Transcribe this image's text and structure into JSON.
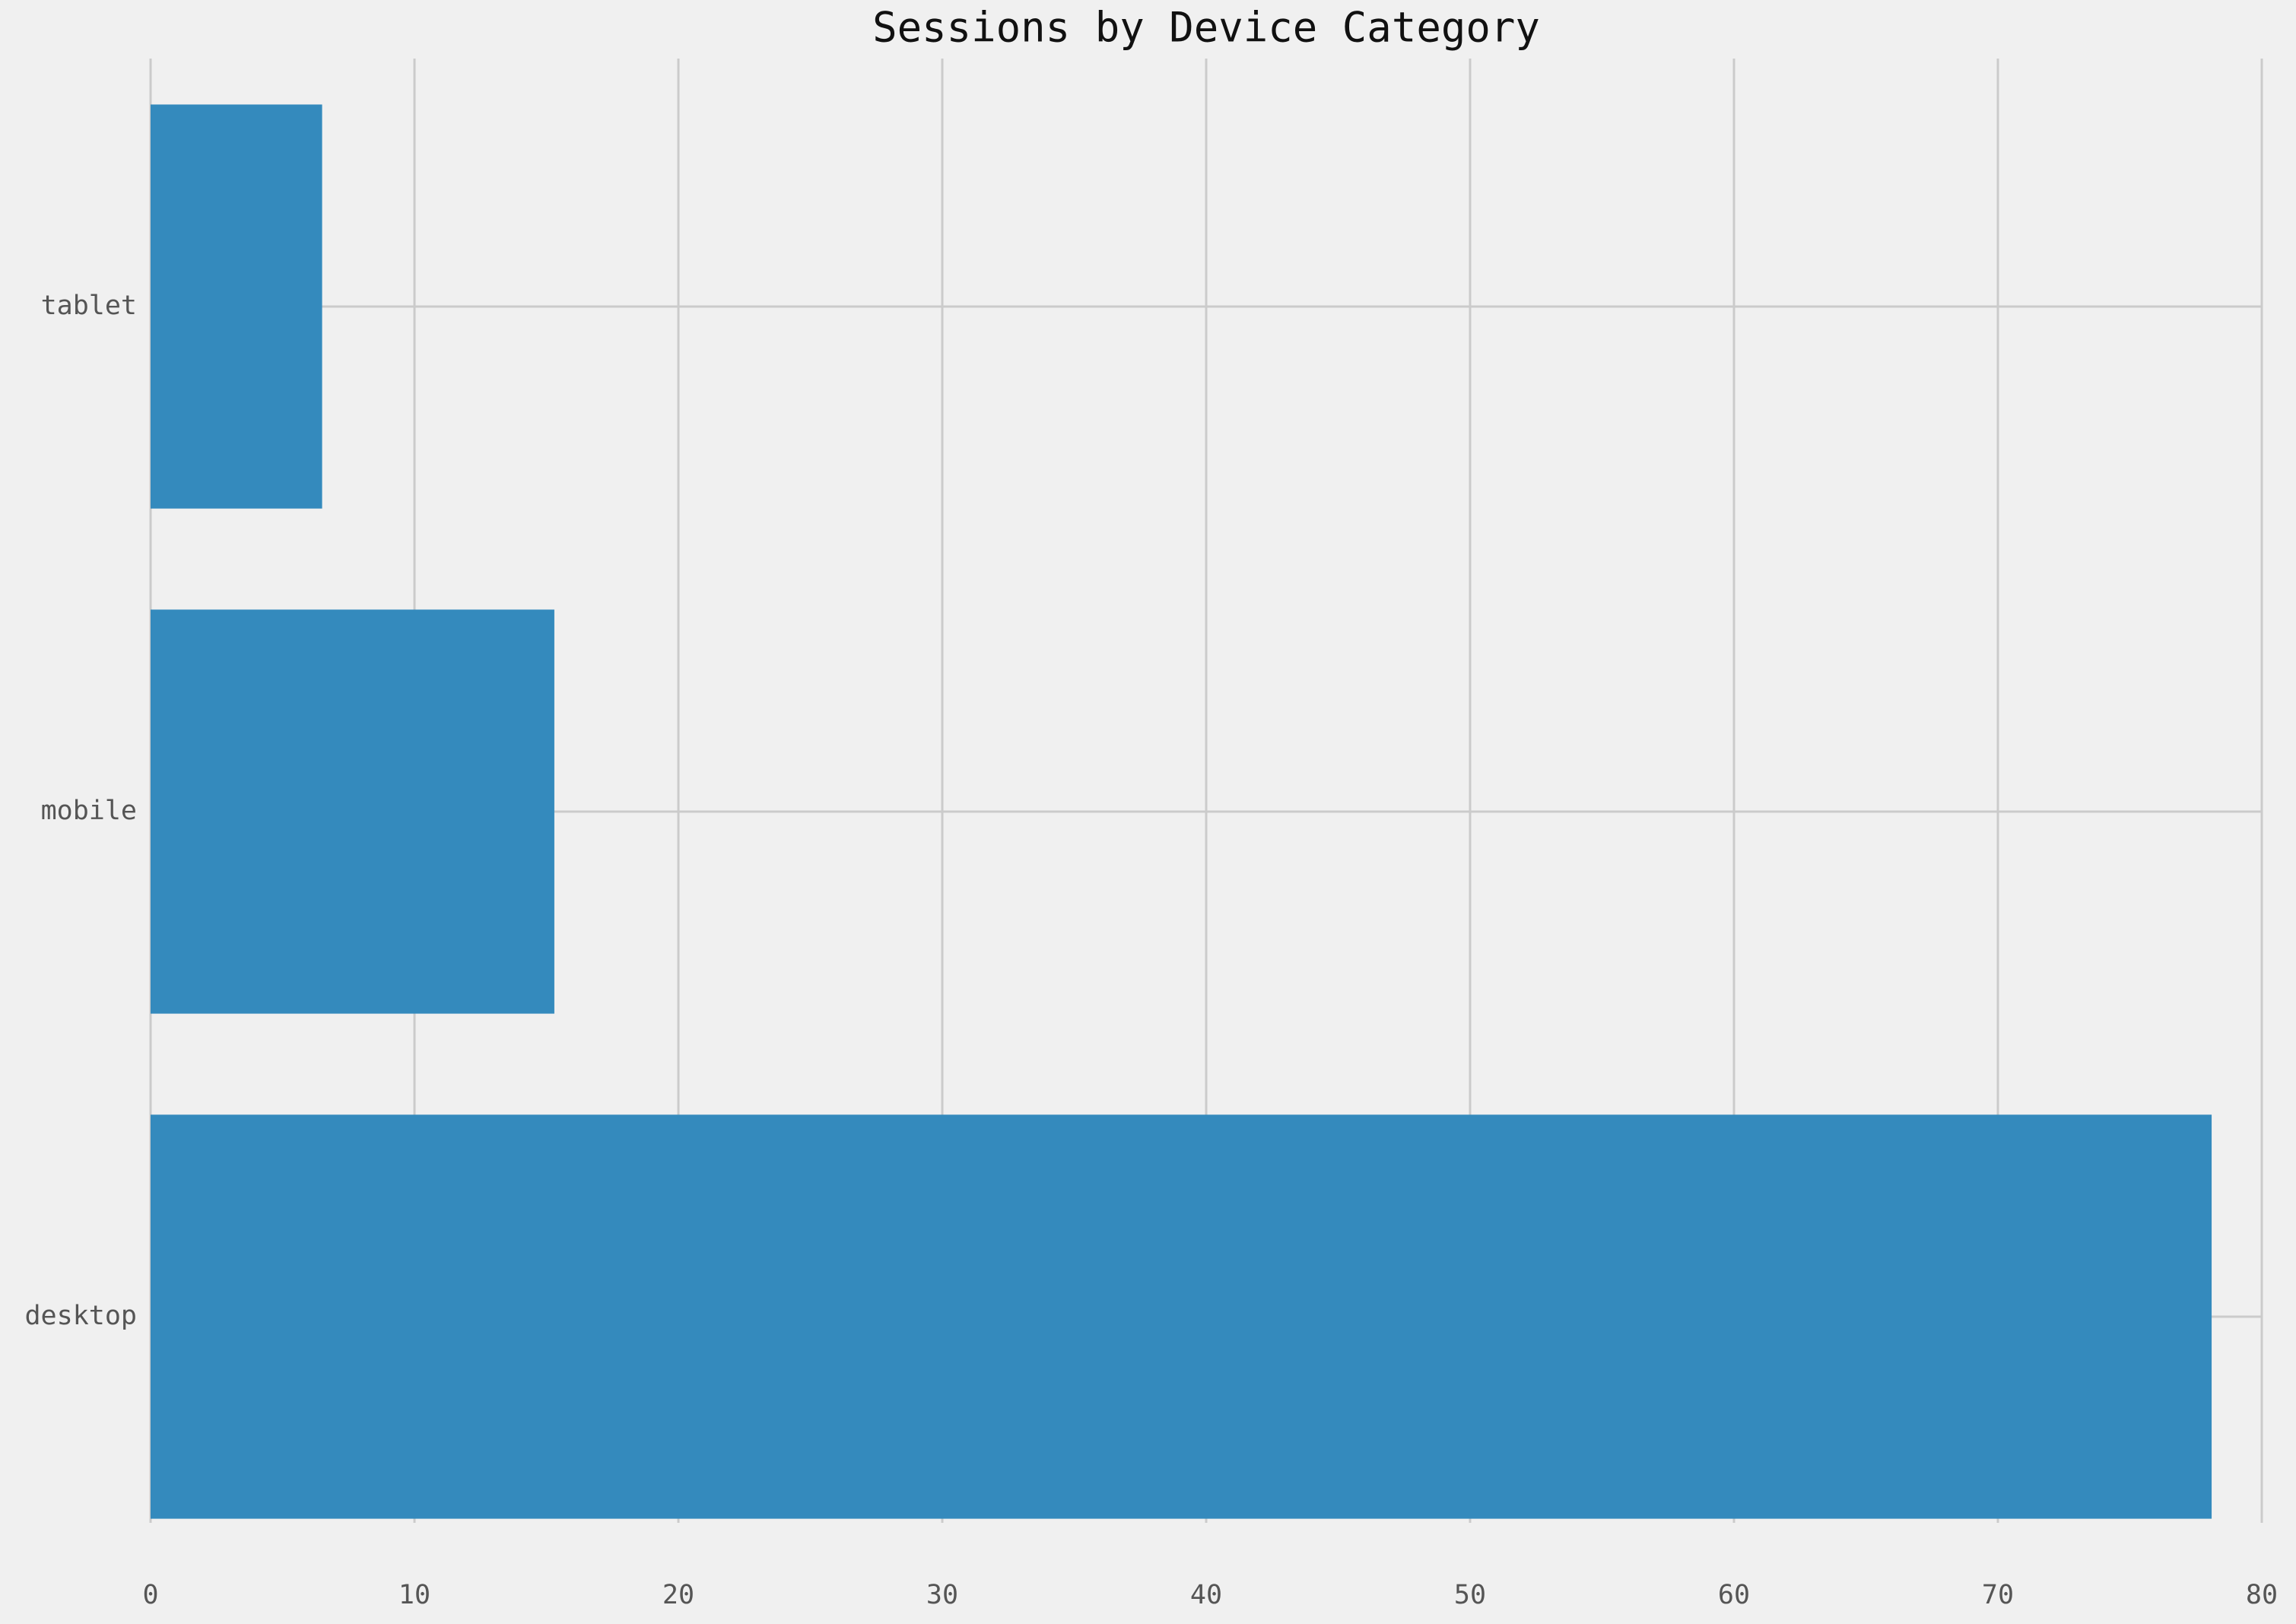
{
  "chart_data": {
    "type": "barh",
    "title": "Sessions by Device Category",
    "categories": [
      "desktop",
      "mobile",
      "tablet"
    ],
    "values": [
      78.1,
      15.3,
      6.5
    ],
    "color": "#348abd",
    "xlim": [
      0,
      80
    ],
    "xticks": [
      0,
      10,
      20,
      30,
      40,
      50,
      60,
      70,
      80
    ],
    "grid": true
  }
}
